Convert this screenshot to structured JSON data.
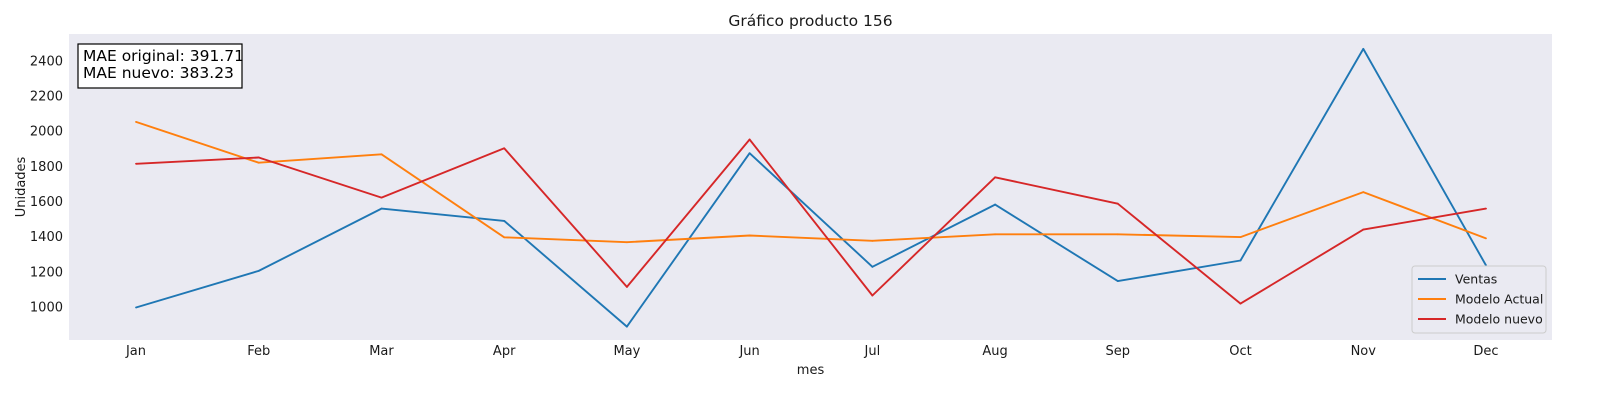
{
  "chart_data": {
    "type": "line",
    "title": "Gráfico producto 156",
    "xlabel": "mes",
    "ylabel": "Unidades",
    "categories": [
      "Jan",
      "Feb",
      "Mar",
      "Apr",
      "May",
      "Jun",
      "Jul",
      "Aug",
      "Sep",
      "Oct",
      "Nov",
      "Dec"
    ],
    "yticks": [
      1000,
      1200,
      1400,
      1600,
      1800,
      2000,
      2200,
      2400
    ],
    "ylim": [
      810,
      2550
    ],
    "grid": false,
    "legend_position": "bottom-right",
    "background": "#eaeaf2",
    "series": [
      {
        "name": "Ventas",
        "color": "#1f77b4",
        "values": [
          995,
          1203,
          1557,
          1487,
          886,
          1872,
          1226,
          1580,
          1145,
          1262,
          2465,
          1234
        ]
      },
      {
        "name": "Modelo Actual",
        "color": "#ff7f0e",
        "values": [
          2050,
          1818,
          1866,
          1394,
          1366,
          1404,
          1374,
          1411,
          1411,
          1395,
          1651,
          1388
        ]
      },
      {
        "name": "Modelo nuevo",
        "color": "#d62728",
        "values": [
          1812,
          1848,
          1620,
          1900,
          1112,
          1950,
          1063,
          1735,
          1585,
          1017,
          1438,
          1557
        ]
      }
    ],
    "annotation": {
      "line1": "MAE original: 391.71",
      "line2": "MAE nuevo: 383.23",
      "position": "top-left"
    }
  }
}
